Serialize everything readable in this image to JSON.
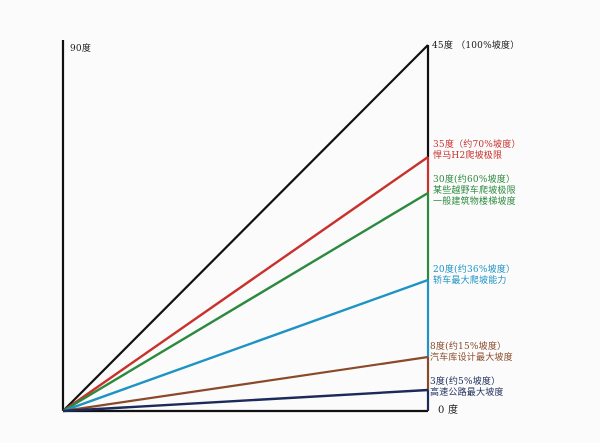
{
  "labels": {
    "top_left": "90度",
    "bottom_right": "0 度"
  },
  "angles": [
    {
      "degrees": 45,
      "title": "45度 （100%坡度）",
      "subtitle": "",
      "color": "#111111"
    },
    {
      "degrees": 35,
      "title": "35度（约70%坡度）",
      "subtitle": "悍马H2爬坡极限",
      "color": "#c8312c"
    },
    {
      "degrees": 30,
      "title": "30度(约60%坡度）",
      "subtitle": "某些越野车爬坡极限\n一般建筑物楼梯坡度",
      "color": "#2c8a3e"
    },
    {
      "degrees": 20,
      "title": "20度(约36%坡度）",
      "subtitle": "轿车最大爬坡能力",
      "color": "#1e93c4"
    },
    {
      "degrees": 8,
      "title": "8度(约15%坡度）",
      "subtitle": "汽车库设计最大坡度",
      "color": "#8a4a2a"
    },
    {
      "degrees": 3,
      "title": "3度(约5%坡度）",
      "subtitle": "高速公路最大坡度",
      "color": "#1b2a5a"
    }
  ],
  "colors": {
    "axis": "#111111",
    "background": "#fbfbfb"
  }
}
